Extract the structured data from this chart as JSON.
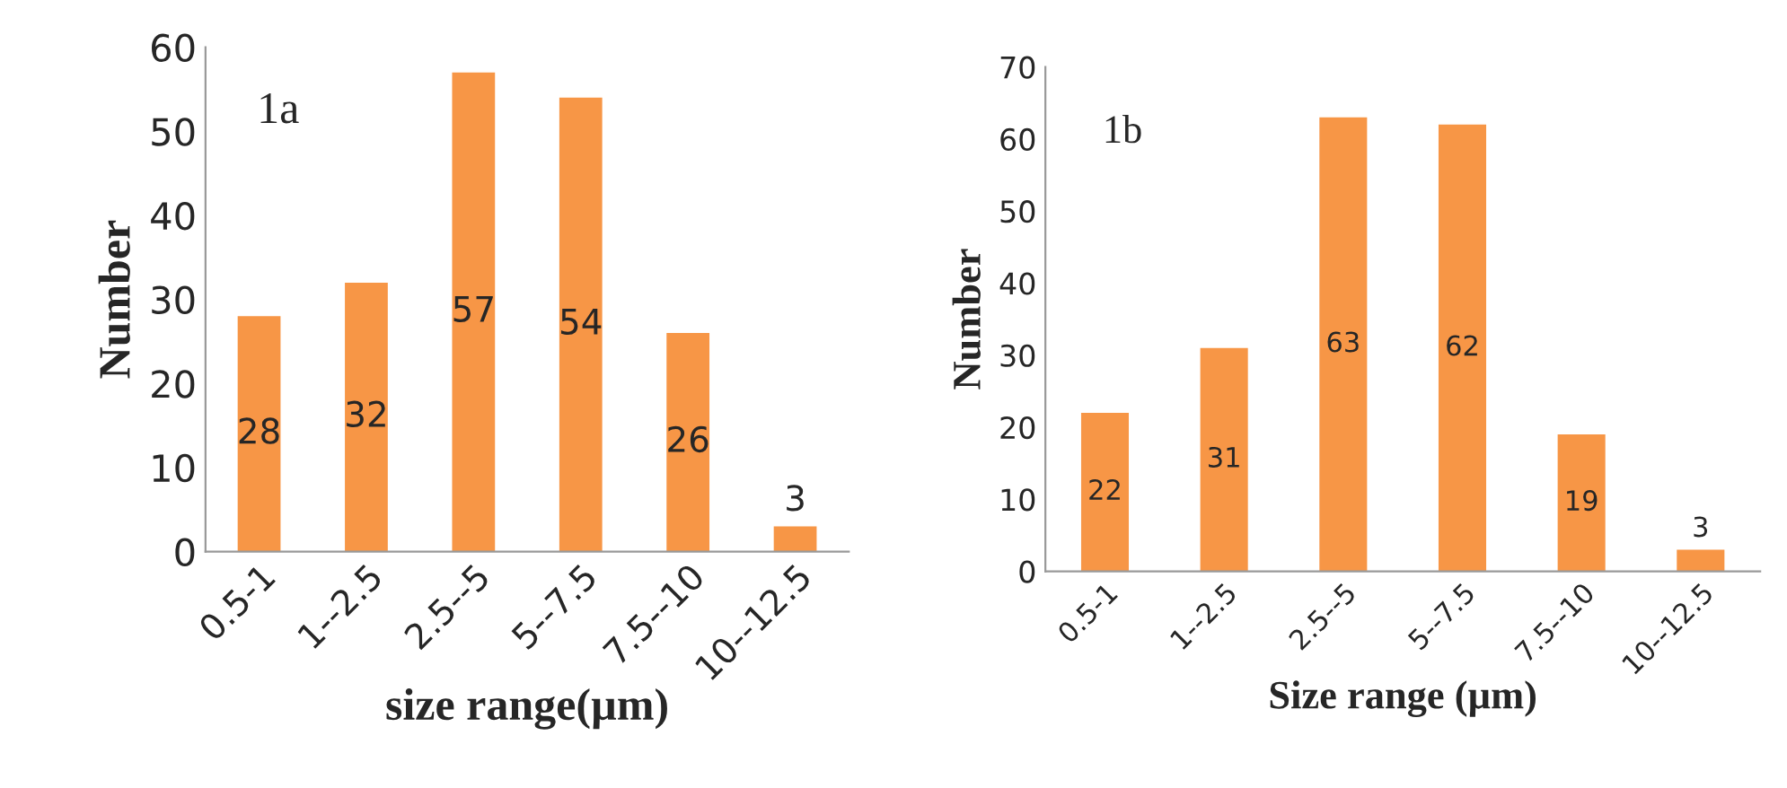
{
  "chart_data": [
    {
      "type": "bar",
      "categories": [
        "0.5-1",
        "1--2.5",
        "2.5--5",
        "5--7.5",
        "7.5--10",
        "10--12.5"
      ],
      "values": [
        28,
        32,
        57,
        54,
        26,
        3
      ],
      "color": "#f79646",
      "data_labels": true,
      "ylim": [
        0,
        60
      ],
      "yticks": [
        0,
        10,
        20,
        30,
        40,
        50,
        60
      ],
      "xlabel": "size range(µm)",
      "ylabel": "Number",
      "annotations": [
        "1a"
      ],
      "grid": false,
      "legend": false
    },
    {
      "type": "bar",
      "categories": [
        "0.5-1",
        "1--2.5",
        "2.5--5",
        "5--7.5",
        "7.5--10",
        "10--12.5"
      ],
      "values": [
        22,
        31,
        63,
        62,
        19,
        3
      ],
      "color": "#f79646",
      "data_labels": true,
      "ylim": [
        0,
        70
      ],
      "yticks": [
        0,
        10,
        20,
        30,
        40,
        50,
        60,
        70
      ],
      "xlabel": "Size range (µm)",
      "ylabel": "Number",
      "annotations": [
        "1b"
      ],
      "grid": false,
      "legend": false
    }
  ]
}
